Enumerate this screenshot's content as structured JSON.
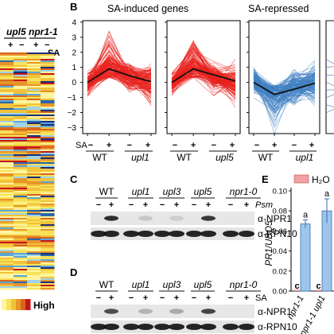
{
  "colors": {
    "induced": "#e8221e",
    "repressed": "#3f7fc1",
    "mean_line": "#111111",
    "bar_fill": "#9ec5ec",
    "bar_edge": "#3a6fb0",
    "legend_swatch": "#f2a1a4",
    "high": "#c5171b"
  },
  "panel_a": {
    "col_labels": [
      "upl5",
      "npr1-1"
    ],
    "treatment_signs": [
      "+",
      "−",
      "+",
      "−"
    ],
    "sa_label": "SA",
    "legend_high": "High"
  },
  "panel_b": {
    "letter": "B",
    "title_induced": "SA-induced genes",
    "title_repressed": "SA-repressed",
    "sa_label": "SA",
    "treatment_signs": [
      "−",
      "+",
      "−",
      "+"
    ],
    "genotypes": [
      "WT",
      "upl1",
      "WT",
      "upl5",
      "WT",
      "upl1"
    ]
  },
  "chart_data": {
    "type": "line",
    "y_ticks": [
      "4",
      "3",
      "2",
      "1",
      "0",
      "−1",
      "−2",
      "−3"
    ],
    "ylim": [
      -3.4,
      4.1
    ],
    "x_conditions": [
      "WT −SA",
      "WT +SA",
      "mutant −SA",
      "mutant +SA"
    ],
    "series": [
      {
        "values": [
          0.0,
          0.9,
          0.45,
          0.05
        ]
      },
      {
        "values": [
          0.0,
          0.9,
          0.5,
          0.1
        ]
      },
      {
        "values": [
          0.0,
          -0.8,
          -0.45,
          -0.05
        ]
      }
    ]
  },
  "panel_c": {
    "letter": "C",
    "lanes": [
      "WT",
      "upl1",
      "upl3",
      "upl5",
      "npr1-0"
    ],
    "signs": [
      "−",
      "+",
      "−",
      "+",
      "−",
      "+",
      "−",
      "+",
      "−",
      "+"
    ],
    "treatment": "Psm",
    "bands": [
      "α-NPR1",
      "α-RPN10"
    ]
  },
  "panel_d": {
    "letter": "D",
    "lanes": [
      "WT",
      "upl1",
      "upl3",
      "upl5",
      "npr1-0"
    ],
    "signs": [
      "−",
      "+",
      "−",
      "+",
      "−",
      "+",
      "−",
      "+",
      "−",
      "+"
    ],
    "treatment": "SA",
    "bands": [
      "α-NPR1",
      "α-RPN10"
    ]
  },
  "panel_e": {
    "letter": "E",
    "ylabel": "PR1/UBQ5",
    "legend": "H₂O",
    "y_ticks": [
      "0.10",
      "0.08",
      "0.06",
      "0.04",
      "0.02",
      "0.00"
    ],
    "ylim": [
      0,
      0.1
    ],
    "bars": [
      {
        "label": "npr1-1",
        "value_low": 0.0,
        "value_high": 0.067,
        "letter_low": "c",
        "letter_high": "a"
      },
      {
        "label": "npr1-1 upl1",
        "value_low": 0.0,
        "value_high": 0.08,
        "letter_low": "c",
        "letter_high": "a"
      }
    ]
  }
}
